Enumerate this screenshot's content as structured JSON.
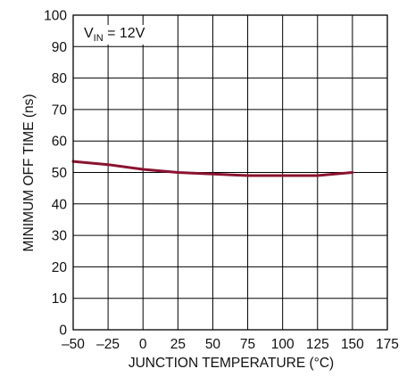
{
  "chart_data": {
    "type": "line",
    "title": "",
    "xlabel": "JUNCTION TEMPERATURE (°C)",
    "ylabel": "MINIMUM OFF TIME (ns)",
    "xlim": [
      -50,
      175
    ],
    "ylim": [
      0,
      100
    ],
    "grid": true,
    "x_ticks": [
      -50,
      -25,
      0,
      25,
      50,
      75,
      100,
      125,
      150,
      175
    ],
    "x_tick_labels": [
      "–50",
      "–25",
      "0",
      "25",
      "50",
      "75",
      "100",
      "125",
      "150",
      "175"
    ],
    "y_ticks": [
      0,
      10,
      20,
      30,
      40,
      50,
      60,
      70,
      80,
      90,
      100
    ],
    "y_tick_labels": [
      "0",
      "10",
      "20",
      "30",
      "40",
      "50",
      "60",
      "70",
      "80",
      "90",
      "100"
    ],
    "annotation": {
      "prefix": "V",
      "subscript": "IN",
      "suffix": " = 12V"
    },
    "series": [
      {
        "color": "#8b1330",
        "x": [
          -50,
          -25,
          0,
          25,
          50,
          75,
          100,
          125,
          150
        ],
        "y": [
          53.5,
          52.5,
          51,
          50,
          49.5,
          49,
          49,
          49,
          50
        ]
      }
    ]
  }
}
